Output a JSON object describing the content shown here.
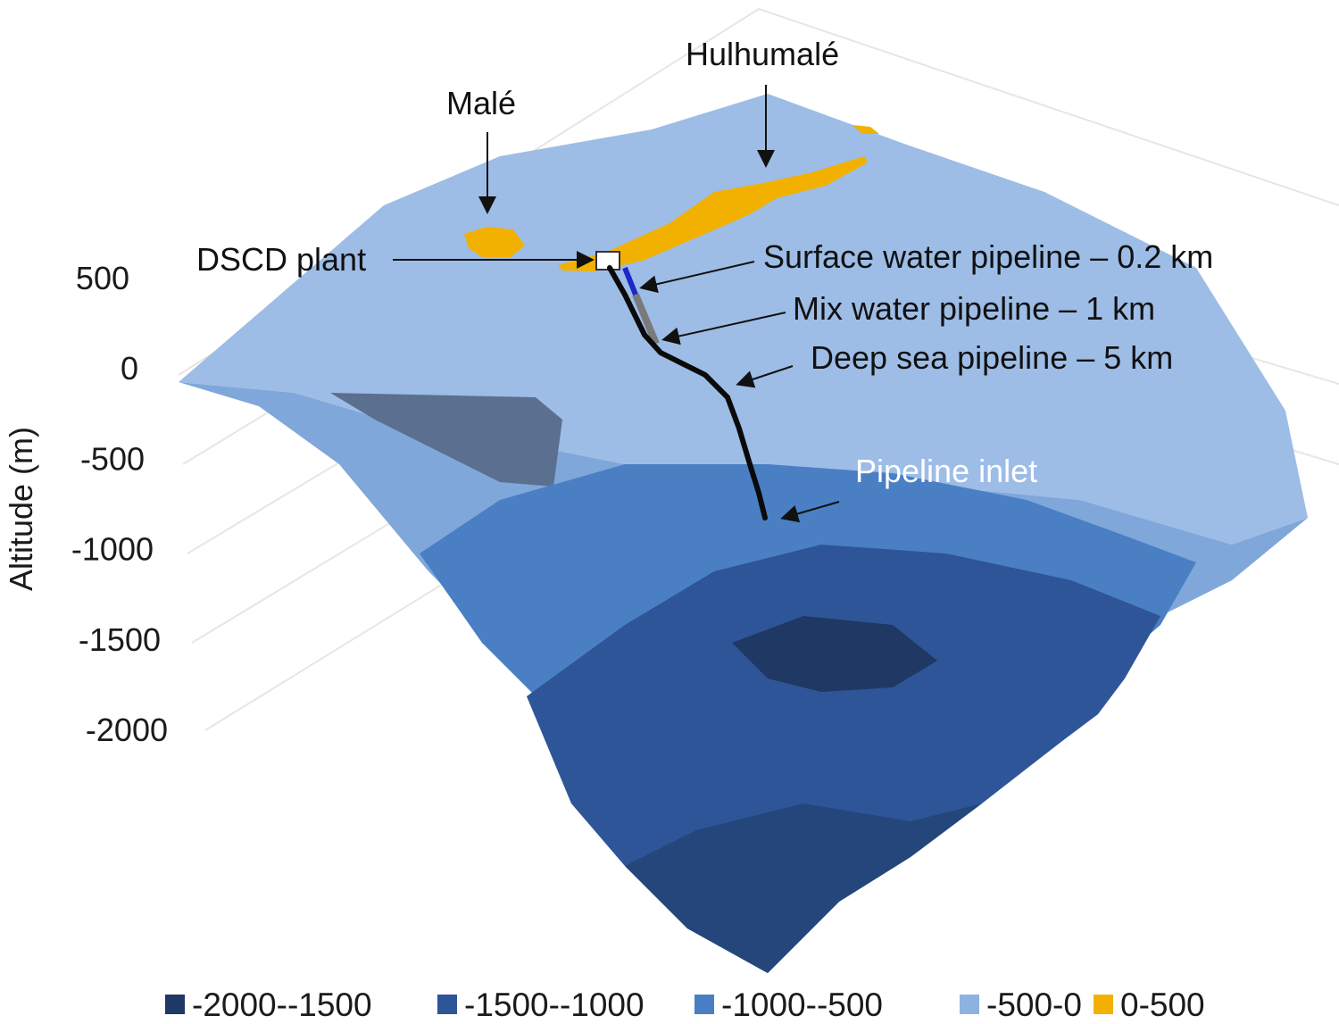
{
  "chart_data": {
    "type": "surface",
    "title": "",
    "zlabel": "Altitude (m)",
    "z_ticks": [
      "500",
      "0",
      "-500",
      "-1000",
      "-1500",
      "-2000"
    ],
    "z_values": [
      500,
      0,
      -500,
      -1000,
      -1500,
      -2000
    ],
    "zlim": [
      -2000,
      500
    ],
    "legend_position": "bottom",
    "legend": [
      {
        "label": "-2000--1500",
        "color": "#1f3864",
        "range": [
          -2000,
          -1500
        ]
      },
      {
        "label": "-1500--1000",
        "color": "#2e5597",
        "range": [
          -1500,
          -1000
        ]
      },
      {
        "label": "-1000--500",
        "color": "#4a7fc4",
        "range": [
          -1000,
          -500
        ]
      },
      {
        "label": "-500-0",
        "color": "#8db2e0",
        "range": [
          -500,
          0
        ]
      },
      {
        "label": "0-500",
        "color": "#f2b100",
        "range": [
          0,
          500
        ]
      }
    ],
    "annotations": {
      "male": "Malé",
      "hulhumale": "Hulhumalé",
      "plant": "DSCD plant",
      "surface_pipe": "Surface water pipeline – 0.2 km",
      "mix_pipe": "Mix water pipeline – 1 km",
      "deep_pipe": "Deep sea pipeline – 5 km",
      "inlet": "Pipeline inlet"
    },
    "pipelines": [
      {
        "name": "Surface water pipeline",
        "length_km": 0.2
      },
      {
        "name": "Mix water pipeline",
        "length_km": 1
      },
      {
        "name": "Deep sea pipeline",
        "length_km": 5
      }
    ]
  }
}
